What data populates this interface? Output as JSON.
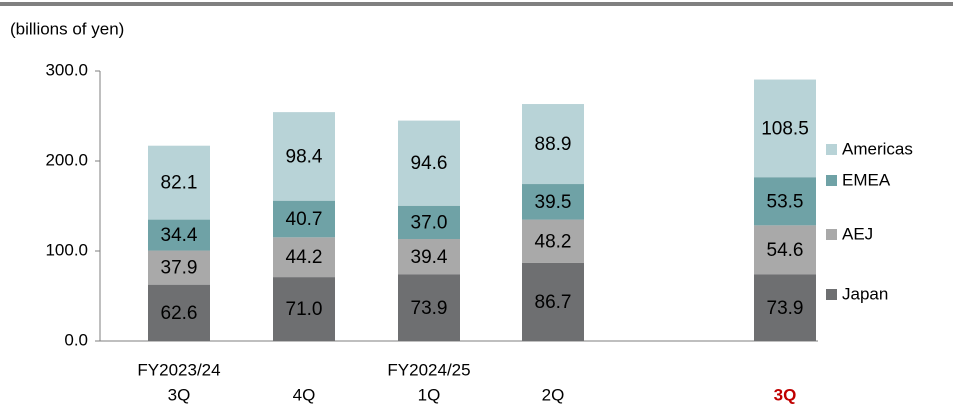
{
  "chart_data": {
    "type": "stacked_bar",
    "axis_label": "(billions of yen)",
    "categories": [
      "3Q",
      "4Q",
      "1Q",
      "2Q",
      "3Q"
    ],
    "category_groups": [
      "FY2023/24",
      null,
      "FY2024/25",
      null,
      null
    ],
    "highlight_index": 4,
    "highlight_color": "#c00000",
    "series": [
      {
        "name": "Japan",
        "color": "#6e6f71",
        "label_color": "#ffffff",
        "values": [
          62.6,
          71.0,
          73.9,
          86.7,
          73.9
        ],
        "value_labels": [
          "62.6",
          "71.0",
          "73.9",
          "86.7",
          "73.9"
        ]
      },
      {
        "name": "AEJ",
        "color": "#a9a9a9",
        "label_color": "#ffffff",
        "values": [
          37.9,
          44.2,
          39.4,
          48.2,
          54.6
        ],
        "value_labels": [
          "37.9",
          "44.2",
          "39.4",
          "48.2",
          "54.6"
        ]
      },
      {
        "name": "EMEA",
        "color": "#6fa2a6",
        "label_color": "#ffffff",
        "values": [
          34.4,
          40.7,
          37.0,
          39.5,
          53.5
        ],
        "value_labels": [
          "34.4",
          "40.7",
          "37.0",
          "39.5",
          "53.5"
        ]
      },
      {
        "name": "Americas",
        "color": "#b8d3d7",
        "label_color": "#000000",
        "values": [
          82.1,
          98.4,
          94.6,
          88.9,
          108.5
        ],
        "value_labels": [
          "82.1",
          "98.4",
          "94.6",
          "88.9",
          "108.5"
        ]
      }
    ],
    "ylim": [
      0,
      300
    ],
    "yticks": [
      {
        "value": 0,
        "label": "0.0"
      },
      {
        "value": 100,
        "label": "100.0"
      },
      {
        "value": 200,
        "label": "200.0"
      },
      {
        "value": 300,
        "label": "300.0"
      }
    ]
  }
}
